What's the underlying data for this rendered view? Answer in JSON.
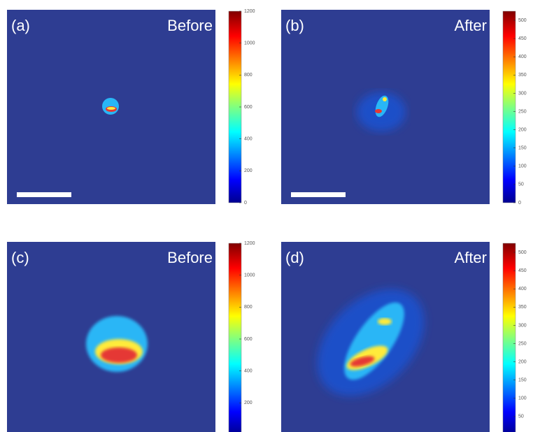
{
  "chart_data": [
    {
      "type": "heatmap",
      "label": "(a)",
      "title": "Before",
      "zlim": [
        0,
        1200
      ],
      "zticks": [
        0,
        200,
        400,
        600,
        800,
        1000,
        1200
      ]
    },
    {
      "type": "heatmap",
      "label": "(b)",
      "title": "After",
      "zlim": [
        0,
        525
      ],
      "zticks": [
        0,
        50,
        100,
        150,
        200,
        250,
        300,
        350,
        400,
        450,
        500
      ]
    },
    {
      "type": "heatmap",
      "label": "(c)",
      "title": "Before",
      "zlim": [
        0,
        1200
      ],
      "zticks": [
        200,
        400,
        600,
        800,
        1000,
        1200
      ]
    },
    {
      "type": "heatmap",
      "label": "(d)",
      "title": "After",
      "zlim": [
        0,
        525
      ],
      "zticks": [
        50,
        100,
        150,
        200,
        250,
        300,
        350,
        400,
        450,
        500
      ]
    }
  ]
}
